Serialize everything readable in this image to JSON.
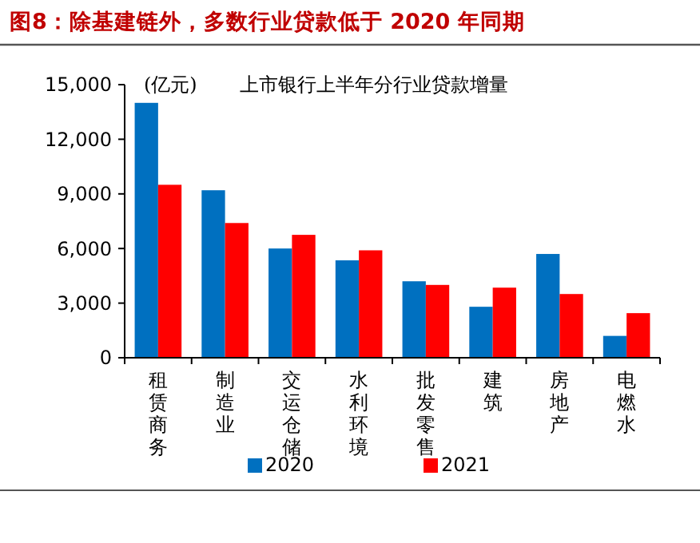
{
  "chart_data": {
    "type": "bar",
    "title": "图8：除基建链外，多数行业贷款低于 2020 年同期",
    "subtitle": "上市银行上半年分行业贷款增量",
    "ylabel": "(亿元)",
    "categories": [
      "租赁商务",
      "制造业",
      "交运仓储",
      "水利环境",
      "批发零售",
      "建筑",
      "房地产",
      "电燃水"
    ],
    "series": [
      {
        "name": "2020",
        "color": "#0070c0",
        "values": [
          14000,
          9200,
          6000,
          5350,
          4200,
          2800,
          5700,
          1200
        ]
      },
      {
        "name": "2021",
        "color": "#ff0000",
        "values": [
          9500,
          7400,
          6750,
          5900,
          4000,
          3850,
          3500,
          2450
        ]
      }
    ],
    "ylim": [
      0,
      15000
    ],
    "yticks": [
      {
        "value": 0,
        "label": "0"
      },
      {
        "value": 3000,
        "label": "3,000"
      },
      {
        "value": 6000,
        "label": "6,000"
      },
      {
        "value": 9000,
        "label": "9,000"
      },
      {
        "value": 12000,
        "label": "12,000"
      },
      {
        "value": 15000,
        "label": "15,000"
      }
    ],
    "grid": false,
    "legend": "bottom"
  }
}
